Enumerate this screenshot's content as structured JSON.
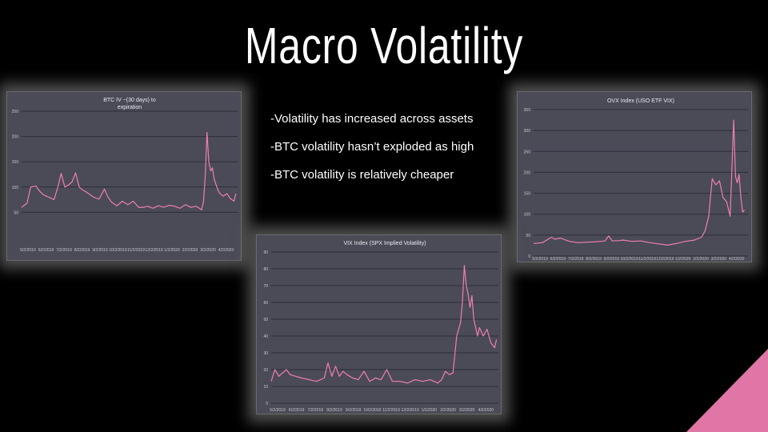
{
  "slide": {
    "title": "Macro Volatility",
    "bullets": [
      "-Volatility has increased across assets",
      "-BTC volatility hasn’t exploded as high",
      "-BTC volatility is relatively cheaper"
    ],
    "accent_color": "#e076a6",
    "background_color": "#000000"
  },
  "chart_data": [
    {
      "id": "btc",
      "type": "line",
      "title_lines": [
        "BTC IV ~(30 days) to",
        "expiration"
      ],
      "line_color": "#f07fae",
      "grid": true,
      "ylim": [
        0,
        250
      ],
      "yticks": [
        50,
        100,
        150,
        200,
        250
      ],
      "xlabels": [
        "5/2/2019",
        "6/2/2019",
        "7/2/2019",
        "8/2/2019",
        "9/2/2019",
        "10/2/2019",
        "11/2/2019",
        "12/2/2019",
        "1/2/2020",
        "2/2/2020",
        "3/2/2020",
        "4/2/2020"
      ],
      "x": [
        0,
        0.3,
        0.5,
        0.8,
        1.0,
        1.2,
        1.5,
        1.8,
        2.0,
        2.2,
        2.4,
        2.6,
        2.8,
        3.0,
        3.2,
        3.4,
        3.6,
        3.8,
        4.0,
        4.3,
        4.6,
        4.8,
        5.0,
        5.3,
        5.6,
        5.9,
        6.2,
        6.5,
        6.8,
        7.0,
        7.3,
        7.6,
        7.9,
        8.2,
        8.5,
        8.8,
        9.1,
        9.4,
        9.7,
        10.0,
        10.1,
        10.2,
        10.3,
        10.4,
        10.5,
        10.6,
        10.7,
        10.8,
        10.9,
        11.0,
        11.2,
        11.4,
        11.6,
        11.8,
        11.9
      ],
      "values": [
        60,
        68,
        100,
        102,
        92,
        85,
        80,
        75,
        98,
        127,
        100,
        104,
        110,
        128,
        100,
        94,
        90,
        85,
        80,
        76,
        96,
        80,
        70,
        63,
        72,
        65,
        72,
        60,
        60,
        62,
        58,
        63,
        60,
        64,
        62,
        58,
        65,
        60,
        62,
        55,
        70,
        120,
        208,
        150,
        132,
        138,
        115,
        105,
        95,
        88,
        82,
        87,
        77,
        72,
        87
      ]
    },
    {
      "id": "ovx",
      "type": "line",
      "title": "OVX Index (USO ETF VIX)",
      "line_color": "#f07fae",
      "grid": true,
      "ylim": [
        0,
        350
      ],
      "yticks": [
        0,
        50,
        100,
        150,
        200,
        250,
        300,
        350
      ],
      "xlabels": [
        "5/2/2019",
        "6/2/2019",
        "7/2/2019",
        "8/2/2019",
        "9/2/2019",
        "10/2/2019",
        "11/2/2019",
        "12/2/2019",
        "1/2/2020",
        "2/2/2020",
        "3/2/2020",
        "4/2/2020"
      ],
      "x": [
        0,
        0.5,
        1.0,
        1.2,
        1.5,
        1.8,
        2.0,
        2.5,
        3.0,
        3.5,
        4.0,
        4.2,
        4.4,
        4.8,
        5.0,
        5.5,
        6.0,
        6.5,
        7.0,
        7.5,
        8.0,
        8.5,
        9.0,
        9.4,
        9.6,
        9.8,
        10.0,
        10.2,
        10.4,
        10.6,
        10.8,
        11.0,
        11.1,
        11.2,
        11.3,
        11.4,
        11.5,
        11.6,
        11.7,
        11.8
      ],
      "values": [
        30,
        32,
        45,
        40,
        43,
        38,
        35,
        32,
        33,
        34,
        36,
        48,
        36,
        37,
        38,
        35,
        36,
        32,
        29,
        26,
        30,
        35,
        38,
        45,
        60,
        95,
        185,
        170,
        180,
        140,
        130,
        95,
        210,
        325,
        190,
        175,
        195,
        140,
        105,
        110
      ]
    },
    {
      "id": "vix",
      "type": "line",
      "title": "VIX Index (SPX Implied Volatility)",
      "line_color": "#f07fae",
      "grid": true,
      "ylim": [
        0,
        90
      ],
      "yticks": [
        0,
        10,
        20,
        30,
        40,
        50,
        60,
        70,
        80,
        90
      ],
      "xlabels": [
        "5/2/2019",
        "6/2/2019",
        "7/2/2019",
        "8/2/2019",
        "9/2/2019",
        "10/2/2019",
        "11/2/2019",
        "12/2/2019",
        "1/2/2020",
        "2/2/2020",
        "3/2/2020",
        "4/2/2020"
      ],
      "x": [
        0,
        0.2,
        0.4,
        0.6,
        0.8,
        1.0,
        1.3,
        1.6,
        2.0,
        2.4,
        2.8,
        3.0,
        3.1,
        3.2,
        3.4,
        3.6,
        3.8,
        4.0,
        4.3,
        4.6,
        4.9,
        5.2,
        5.5,
        5.8,
        6.1,
        6.4,
        6.8,
        7.2,
        7.6,
        8.0,
        8.4,
        8.8,
        9.0,
        9.2,
        9.4,
        9.6,
        9.8,
        10.0,
        10.1,
        10.2,
        10.3,
        10.4,
        10.5,
        10.6,
        10.7,
        10.8,
        10.9,
        11.0,
        11.2,
        11.4,
        11.6,
        11.8,
        11.9
      ],
      "values": [
        13,
        20,
        16,
        18,
        20,
        17,
        16,
        15,
        14,
        13,
        15,
        24,
        20,
        16,
        22,
        16,
        19,
        17,
        15,
        14,
        19,
        13,
        15,
        14,
        20,
        13,
        13,
        12,
        14,
        13,
        14,
        12,
        14,
        19,
        17,
        18,
        40,
        48,
        60,
        82,
        70,
        65,
        57,
        64,
        50,
        45,
        40,
        45,
        40,
        44,
        36,
        33,
        38
      ]
    }
  ],
  "icons": {
    "corner_decoration": "triangle-decoration-icon"
  }
}
